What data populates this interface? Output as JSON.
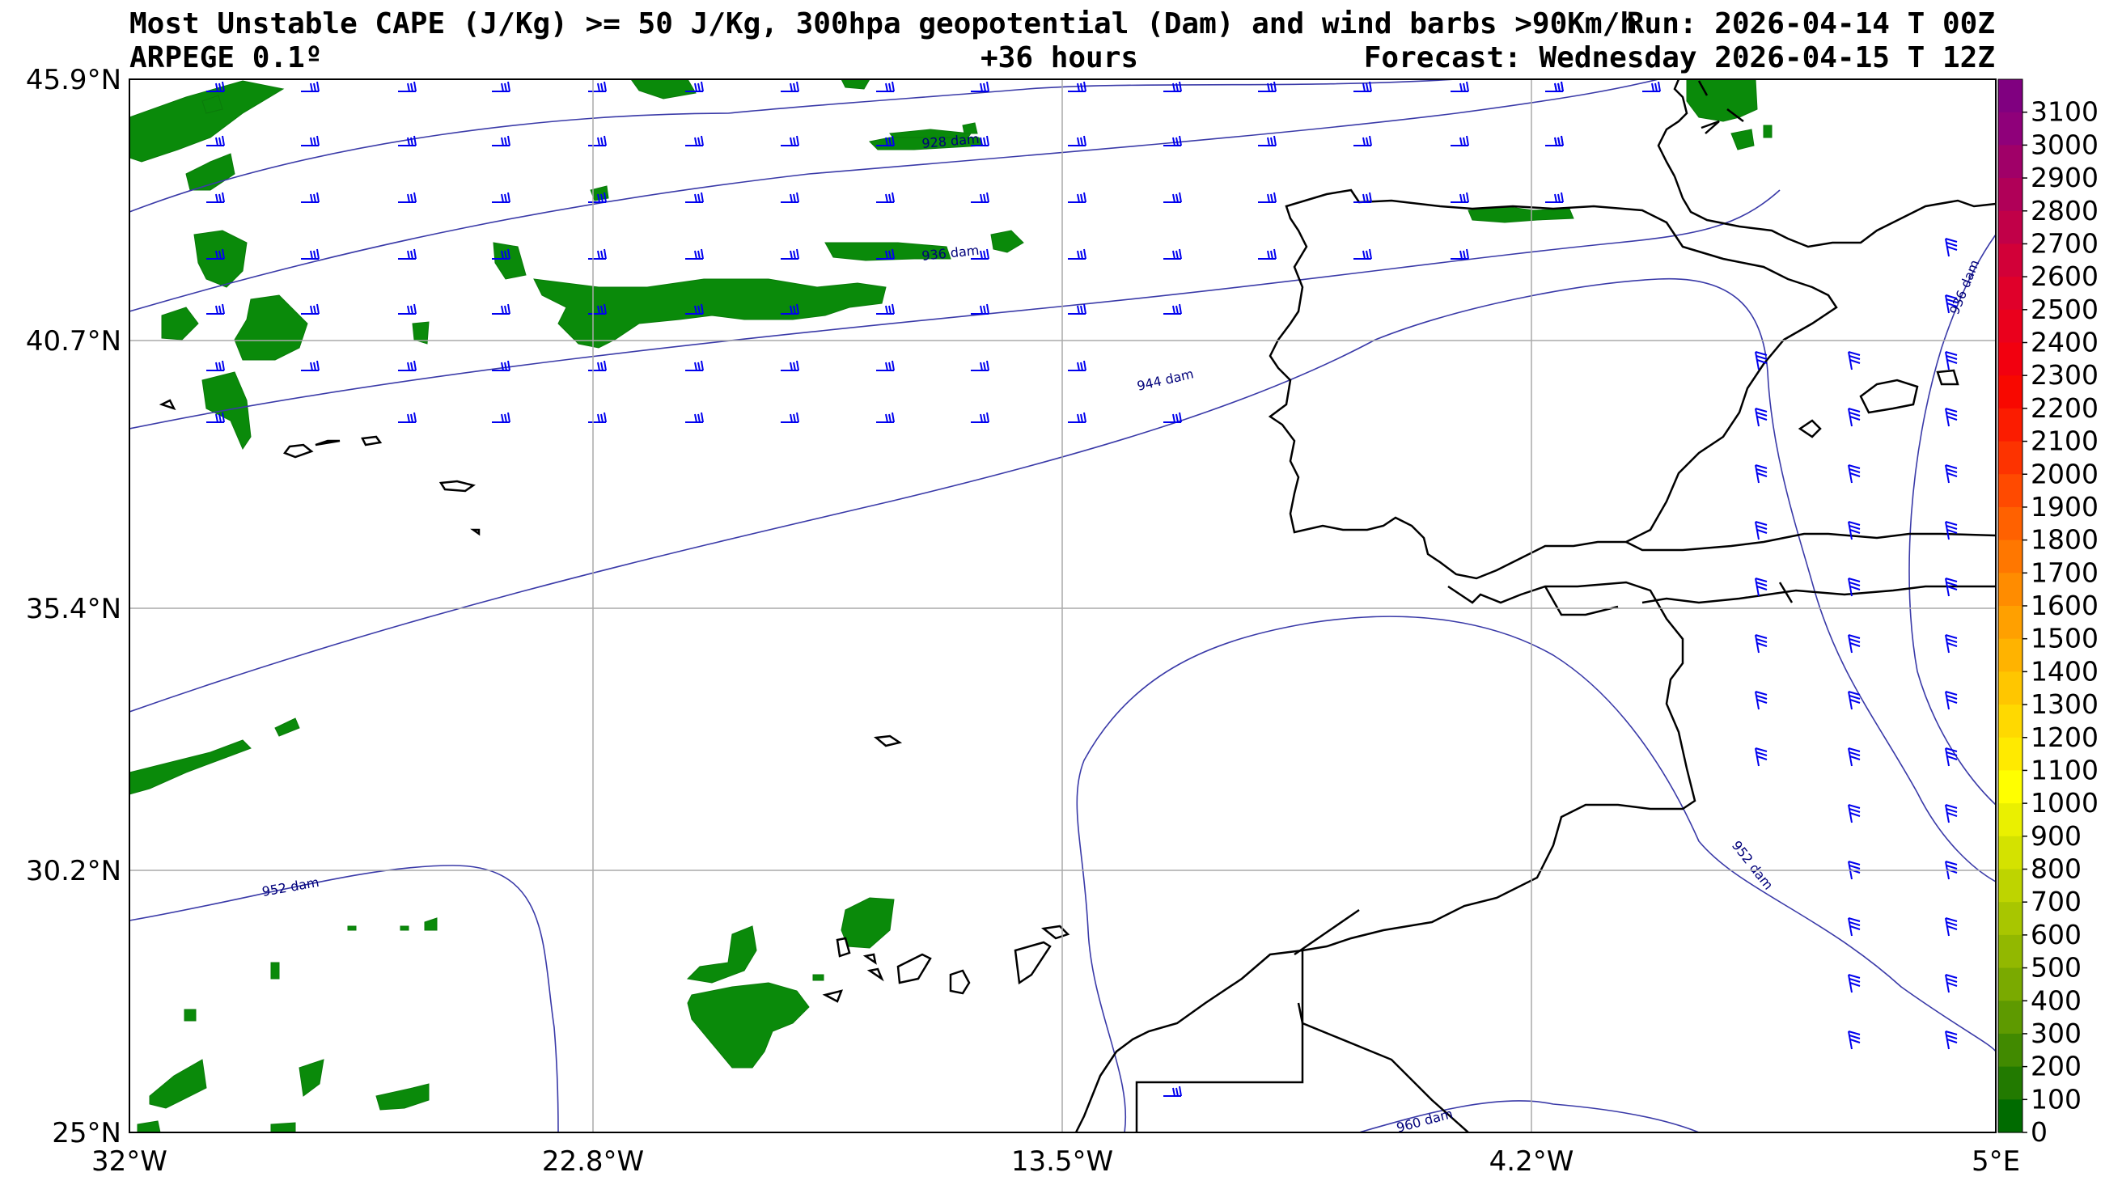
{
  "header": {
    "title": "Most Unstable CAPE (J/Kg) >= 50 J/Kg, 300hpa geopotential (Dam) and wind barbs >90Km/h",
    "run": "Run: 2026-04-14 T 00Z",
    "model": "ARPEGE 0.1º",
    "lead": "+36 hours",
    "forecast": "Forecast: Wednesday 2026-04-15 T 12Z"
  },
  "map": {
    "lon_range": [
      -32,
      5
    ],
    "lat_range": [
      25,
      45.9
    ],
    "lon_ticks": [
      "32°W",
      "22.8°W",
      "13.5°W",
      "4.2°W",
      "5°E"
    ],
    "lat_ticks": [
      "45.9°N",
      "40.7°N",
      "35.4°N",
      "30.2°N",
      "25°N"
    ],
    "contour_labels": [
      "928 dam",
      "936 dam",
      "944 dam",
      "936 dam",
      "952 dam",
      "952 dam",
      "960 dam"
    ]
  },
  "colorbar": {
    "labels": [
      "3100",
      "3000",
      "2900",
      "2800",
      "2700",
      "2600",
      "2500",
      "2400",
      "2300",
      "2200",
      "2100",
      "2000",
      "1900",
      "1800",
      "1700",
      "1600",
      "1500",
      "1400",
      "1300",
      "1200",
      "1100",
      "1000",
      "900",
      "800",
      "700",
      "600",
      "500",
      "400",
      "300",
      "200",
      "100",
      "0"
    ],
    "colors": [
      "#800080",
      "#8f007a",
      "#a00068",
      "#b00058",
      "#c10048",
      "#d20038",
      "#e0002a",
      "#ea001c",
      "#f2000f",
      "#f80800",
      "#fb1c00",
      "#fd3300",
      "#ff4a00",
      "#ff6100",
      "#ff7700",
      "#ff8c00",
      "#ffa000",
      "#ffb300",
      "#ffc600",
      "#ffd900",
      "#ffea00",
      "#ffff00",
      "#eaf000",
      "#d4e200",
      "#bed400",
      "#a8c600",
      "#92b800",
      "#7aaa00",
      "#5e9a00",
      "#418a00",
      "#227a00",
      "#006b00"
    ]
  }
}
